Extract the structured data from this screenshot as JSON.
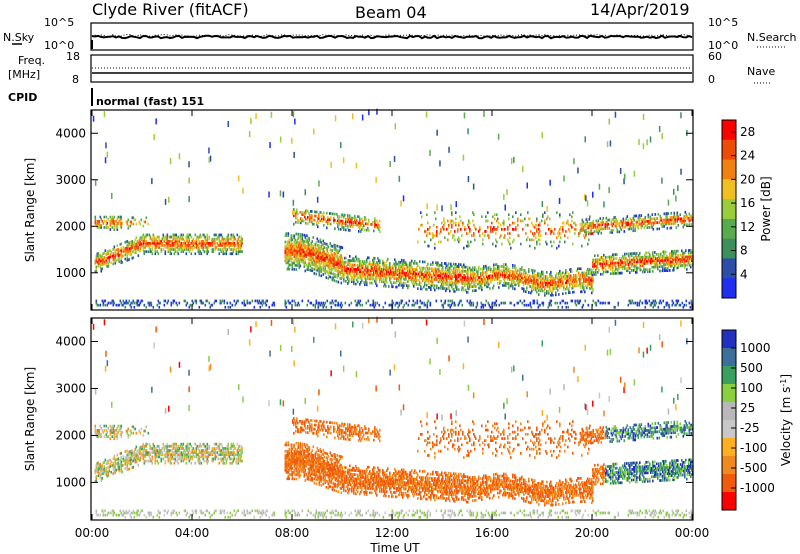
{
  "header": {
    "station": "Clyde River (fitACF)",
    "beam": "Beam 04",
    "date": "14/Apr/2019"
  },
  "nsky_panel": {
    "left_label": "N.Sky",
    "right_label": "N.Search",
    "left_ticks": [
      "10^5",
      "10^0"
    ],
    "right_ticks": [
      "10^5",
      "10^0"
    ]
  },
  "freq_panel": {
    "left_label_1": "Freq.",
    "left_label_2": "[MHz]",
    "right_label": "Nave",
    "left_ticks": [
      "18",
      "8"
    ],
    "right_ticks": [
      "60",
      "0"
    ]
  },
  "cpid": {
    "label": "CPID",
    "mode": "normal (fast) 151"
  },
  "colors": {
    "power_scale": [
      "#1f2ff0",
      "#2b4ea8",
      "#3d8f5c",
      "#5aab4e",
      "#9acd3c",
      "#f0c020",
      "#f08010",
      "#f04a08",
      "#ff0000"
    ],
    "velocity_scale": [
      "#ff0000",
      "#f05a0a",
      "#f08a20",
      "#ffb020",
      "#c8c8c8",
      "#b8b8b8",
      "#88d040",
      "#3aa060",
      "#3d6f9d",
      "#2230c0"
    ]
  },
  "chart_data": [
    {
      "type": "heatmap",
      "name": "power-panel",
      "ylabel": "Slant Range [km]",
      "yticks": [
        "1000",
        "2000",
        "3000",
        "4000"
      ],
      "ylim": [
        200,
        4500
      ],
      "xlim_hours": [
        0,
        24
      ],
      "colorbar": {
        "label": "Power [dB]",
        "ticks": [
          "4",
          "8",
          "12",
          "16",
          "20",
          "24",
          "28"
        ],
        "range": [
          0,
          30
        ]
      }
    },
    {
      "type": "heatmap",
      "name": "velocity-panel",
      "ylabel": "Slant Range [km]",
      "yticks": [
        "1000",
        "2000",
        "3000",
        "4000"
      ],
      "ylim": [
        200,
        4500
      ],
      "xlim_hours": [
        0,
        24
      ],
      "colorbar": {
        "label": "Velocity",
        "unit": "[m s",
        "unit_exp": "-1",
        "unit_end": "]",
        "ticks": [
          "1000",
          "500",
          "100",
          "25",
          "-25",
          "-100",
          "-500",
          "-1000"
        ]
      }
    }
  ],
  "xaxis": {
    "ticks": [
      "00:00",
      "04:00",
      "08:00",
      "12:00",
      "16:00",
      "20:00",
      "00:00"
    ],
    "label": "Time UT"
  }
}
